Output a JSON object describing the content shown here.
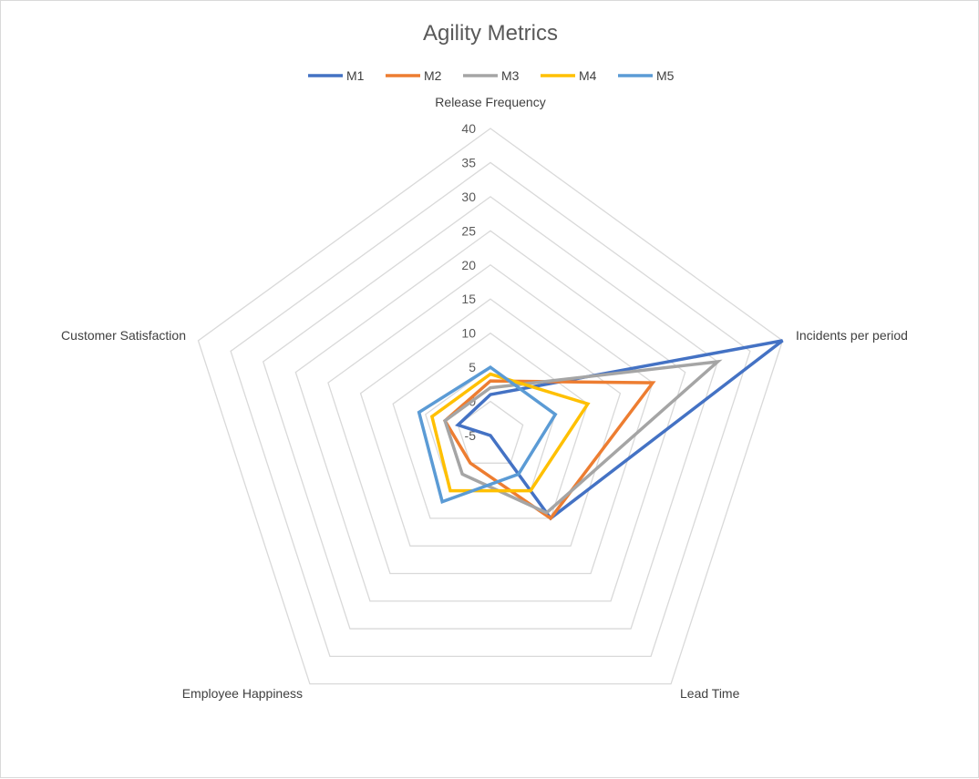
{
  "chart_data": {
    "type": "radar",
    "title": "Agility Metrics",
    "categories": [
      "Release Frequency",
      "Incidents per period",
      "Lead Time",
      "Employee Happiness",
      "Customer Satisfaction"
    ],
    "rlim": [
      -5,
      40
    ],
    "ticks": [
      -5,
      0,
      5,
      10,
      15,
      20,
      25,
      30,
      35,
      40
    ],
    "grid": true,
    "legend_position": "top",
    "series": [
      {
        "name": "M1",
        "color": "#4472C4",
        "values": [
          1,
          40,
          10,
          -5,
          0
        ]
      },
      {
        "name": "M2",
        "color": "#ED7D31",
        "values": [
          3,
          20,
          10,
          0,
          2
        ]
      },
      {
        "name": "M3",
        "color": "#A5A5A5",
        "values": [
          2,
          30,
          9,
          2,
          2
        ]
      },
      {
        "name": "M4",
        "color": "#FFC000",
        "values": [
          4,
          10,
          5,
          5,
          4
        ]
      },
      {
        "name": "M5",
        "color": "#5B9BD5",
        "values": [
          5,
          5,
          2,
          7,
          6
        ]
      }
    ]
  }
}
